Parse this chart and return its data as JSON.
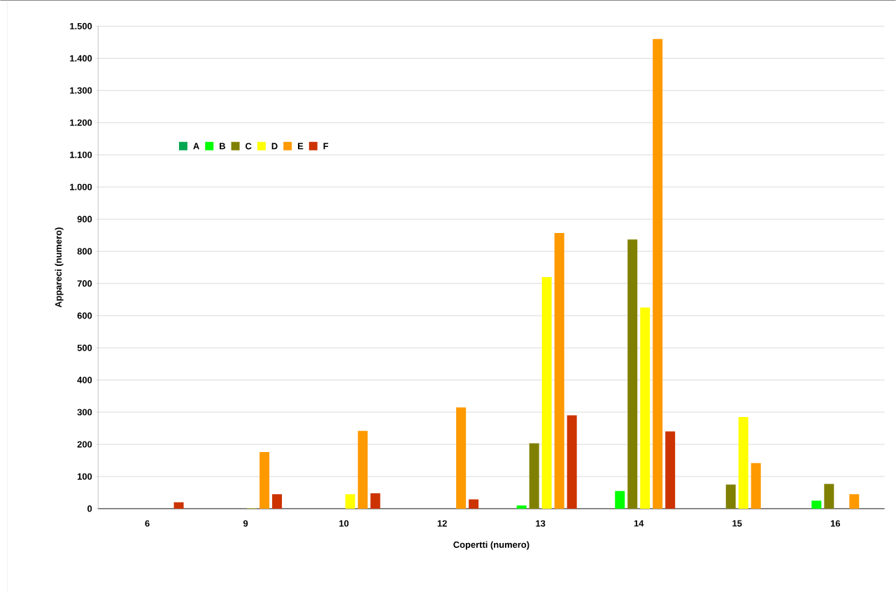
{
  "chart_data": {
    "type": "bar",
    "xlabel": "Copertti (numero)",
    "ylabel": "Appareci (numero)",
    "categories": [
      "6",
      "9",
      "10",
      "12",
      "13",
      "14",
      "15",
      "16"
    ],
    "series": [
      {
        "name": "A",
        "color": "#00a651",
        "values": [
          0,
          0,
          0,
          0,
          0,
          0,
          0,
          0
        ]
      },
      {
        "name": "B",
        "color": "#00ff00",
        "values": [
          0,
          0,
          0,
          0,
          10,
          55,
          0,
          25
        ]
      },
      {
        "name": "C",
        "color": "#808000",
        "values": [
          0,
          0,
          0,
          0,
          203,
          837,
          75,
          77
        ]
      },
      {
        "name": "D",
        "color": "#ffff00",
        "values": [
          0,
          1,
          45,
          0,
          720,
          625,
          285,
          0
        ]
      },
      {
        "name": "E",
        "color": "#ff9900",
        "values": [
          0,
          176,
          242,
          315,
          857,
          1460,
          142,
          45
        ]
      },
      {
        "name": "F",
        "color": "#cc3300",
        "values": [
          20,
          45,
          48,
          29,
          290,
          240,
          0,
          0
        ]
      }
    ],
    "ylim": [
      0,
      1500
    ],
    "yticks": [
      0,
      100,
      200,
      300,
      400,
      500,
      600,
      700,
      800,
      900,
      {
        "value": 1000,
        "label": "1.000"
      },
      {
        "value": 1100,
        "label": "1.100"
      },
      {
        "value": 1200,
        "label": "1.200"
      },
      {
        "value": 1300,
        "label": "1.300"
      },
      {
        "value": 1400,
        "label": "1.400"
      },
      {
        "value": 1500,
        "label": "1.500"
      }
    ],
    "grid": "y",
    "legend": "top left"
  }
}
